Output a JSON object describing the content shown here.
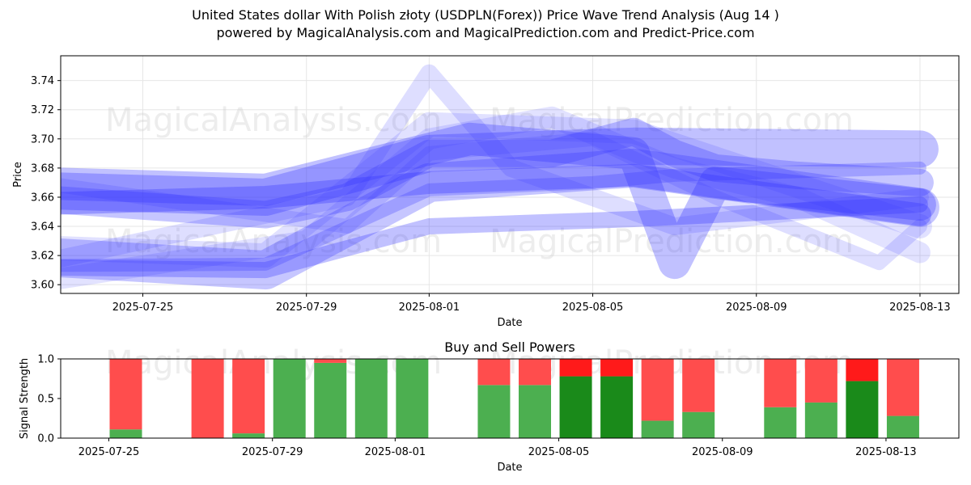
{
  "title_line1": "United States dollar With Polish złoty (USDPLN(Forex)) Price Wave Trend Analysis (Aug 14 )",
  "title_line2": "powered by MagicalAnalysis.com and MagicalPrediction.com and Predict-Price.com",
  "watermarks": [
    "MagicalAnalysis.com",
    "MagicalPrediction.com"
  ],
  "chart_data": [
    {
      "type": "line",
      "title": "",
      "xlabel": "Date",
      "ylabel": "Price",
      "x_ticks": [
        "2025-07-25",
        "2025-07-29",
        "2025-08-01",
        "2025-08-05",
        "2025-08-09",
        "2025-08-13"
      ],
      "y_ticks": [
        "3.60",
        "3.62",
        "3.64",
        "3.66",
        "3.68",
        "3.70",
        "3.72",
        "3.74"
      ],
      "xlim": [
        "2025-07-22",
        "2025-08-13"
      ],
      "ylim": [
        3.594,
        3.757
      ],
      "grid": true,
      "colors": {
        "wave": "#3333ff"
      },
      "series": [
        {
          "x": [
            "2025-07-22",
            "2025-07-28",
            "2025-08-01",
            "2025-08-06",
            "2025-08-13"
          ],
          "values": [
            3.655,
            3.66,
            3.67,
            3.675,
            3.648
          ]
        },
        {
          "x": [
            "2025-07-22",
            "2025-07-28",
            "2025-08-01",
            "2025-08-06",
            "2025-08-13"
          ],
          "values": [
            3.612,
            3.61,
            3.64,
            3.645,
            3.655
          ]
        },
        {
          "x": [
            "2025-07-22",
            "2025-07-26",
            "2025-07-28",
            "2025-07-30",
            "2025-08-01",
            "2025-08-04",
            "2025-08-06",
            "2025-08-07",
            "2025-08-08",
            "2025-08-10",
            "2025-08-13"
          ],
          "values": [
            3.66,
            3.652,
            3.648,
            3.66,
            3.69,
            3.69,
            3.705,
            3.69,
            3.68,
            3.675,
            3.67
          ]
        },
        {
          "x": [
            "2025-07-22",
            "2025-07-28",
            "2025-08-01",
            "2025-08-05",
            "2025-08-07",
            "2025-08-13"
          ],
          "values": [
            3.613,
            3.614,
            3.665,
            3.67,
            3.675,
            3.68
          ]
        },
        {
          "x": [
            "2025-07-22",
            "2025-07-28",
            "2025-08-01",
            "2025-08-06",
            "2025-08-13"
          ],
          "values": [
            3.665,
            3.66,
            3.69,
            3.695,
            3.693
          ]
        },
        {
          "x": [
            "2025-07-22",
            "2025-07-28",
            "2025-08-01",
            "2025-08-06",
            "2025-08-13"
          ],
          "values": [
            3.62,
            3.61,
            3.67,
            3.68,
            3.653
          ]
        },
        {
          "x": [
            "2025-07-22",
            "2025-07-30",
            "2025-08-01",
            "2025-08-03",
            "2025-08-07",
            "2025-08-13"
          ],
          "values": [
            3.612,
            3.66,
            3.745,
            3.68,
            3.64,
            3.66
          ]
        },
        {
          "x": [
            "2025-07-22",
            "2025-07-29",
            "2025-08-01",
            "2025-08-04",
            "2025-08-07",
            "2025-08-10",
            "2025-08-13"
          ],
          "values": [
            3.6,
            3.63,
            3.7,
            3.715,
            3.68,
            3.66,
            3.622
          ]
        },
        {
          "x": [
            "2025-07-22",
            "2025-07-30",
            "2025-08-01",
            "2025-08-05",
            "2025-08-08",
            "2025-08-12",
            "2025-08-13"
          ],
          "values": [
            3.672,
            3.64,
            3.69,
            3.7,
            3.66,
            3.615,
            3.64
          ]
        },
        {
          "x": [
            "2025-07-22",
            "2025-07-28",
            "2025-08-02",
            "2025-08-06",
            "2025-08-07",
            "2025-08-08",
            "2025-08-13"
          ],
          "values": [
            3.67,
            3.665,
            3.7,
            3.69,
            3.615,
            3.67,
            3.655
          ]
        },
        {
          "x": [
            "2025-07-23",
            "2025-07-28",
            "2025-08-01",
            "2025-08-06",
            "2025-08-13"
          ],
          "values": [
            3.625,
            3.62,
            3.71,
            3.705,
            3.64
          ]
        }
      ]
    },
    {
      "type": "bar",
      "title": "Buy and Sell Powers",
      "xlabel": "Date",
      "ylabel": "Signal Strength",
      "x_ticks": [
        "2025-07-25",
        "2025-07-29",
        "2025-08-01",
        "2025-08-05",
        "2025-08-09",
        "2025-08-13"
      ],
      "y_ticks": [
        "0.0",
        "0.5",
        "1.0"
      ],
      "xlim": [
        "2025-07-22",
        "2025-08-13"
      ],
      "ylim": [
        0,
        1
      ],
      "colors": {
        "buy": "#4caf50",
        "sell": "#ff4d4d",
        "buy_strong": "#1a8a1a",
        "sell_strong": "#ff1a1a"
      },
      "categories": [
        "2025-07-25",
        "2025-07-27",
        "2025-07-28",
        "2025-07-29",
        "2025-07-30",
        "2025-07-31",
        "2025-08-01",
        "2025-08-03",
        "2025-08-04",
        "2025-08-05",
        "2025-08-06",
        "2025-08-07",
        "2025-08-08",
        "2025-08-10",
        "2025-08-11",
        "2025-08-12",
        "2025-08-13"
      ],
      "series": [
        {
          "name": "Buy",
          "values": [
            0.11,
            0.0,
            0.06,
            1.0,
            0.95,
            1.0,
            1.0,
            0.67,
            0.67,
            0.78,
            0.78,
            0.22,
            0.33,
            0.39,
            0.45,
            0.72,
            0.28
          ]
        },
        {
          "name": "Sell",
          "values": [
            0.89,
            1.0,
            0.94,
            0.0,
            0.05,
            0.0,
            0.0,
            0.33,
            0.33,
            0.22,
            0.22,
            0.78,
            0.67,
            0.61,
            0.55,
            0.28,
            0.72
          ]
        }
      ]
    }
  ]
}
